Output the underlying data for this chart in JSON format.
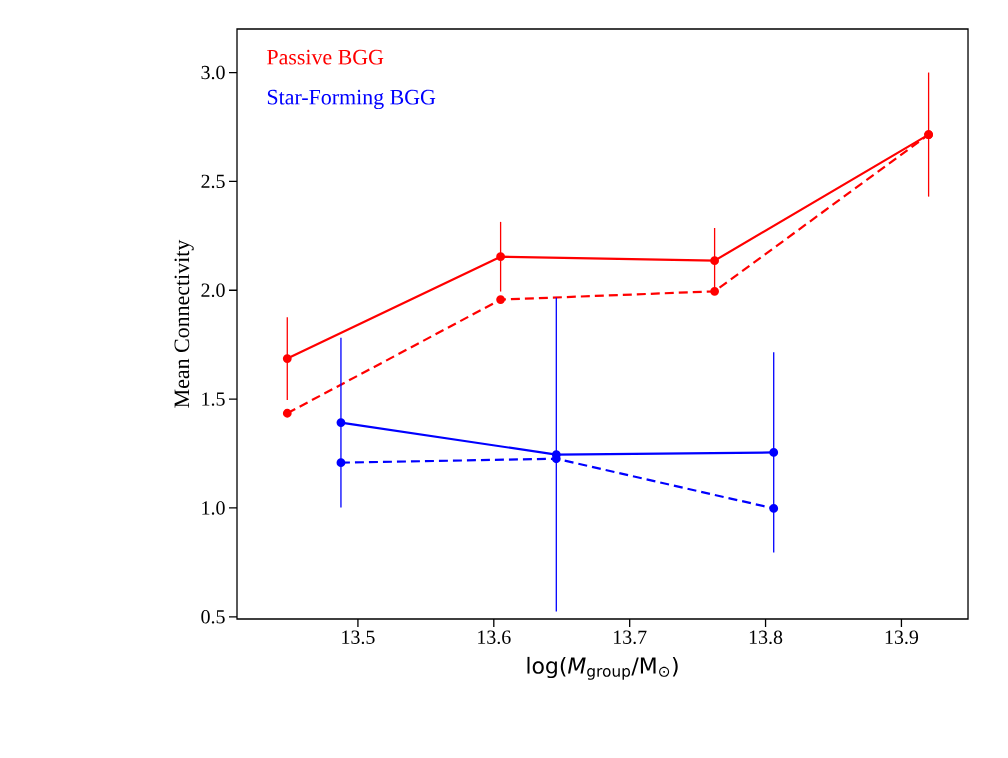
{
  "chart_data": {
    "type": "line",
    "xlabel": "log(*M*$_{group}$/M$_{⊙}$)",
    "ylabel": "Mean Connectivity",
    "xlim": [
      13.411,
      13.949
    ],
    "ylim": [
      0.49,
      3.2
    ],
    "xticks": [
      13.5,
      13.6,
      13.7,
      13.8,
      13.9
    ],
    "yticks": [
      0.5,
      {
        "value": 1,
        "label": "1.0"
      },
      1.5,
      {
        "value": 2,
        "label": "2.0"
      },
      2.5,
      {
        "value": 3,
        "label": "3.0"
      }
    ],
    "grid": false,
    "legend": "top left",
    "marker": "circle",
    "series": [
      {
        "name": "Passive BGG",
        "color": "#ff0000",
        "line_style": "solid",
        "x": [
          13.448,
          13.605,
          13.7625,
          13.92
        ],
        "values": [
          1.686,
          2.154,
          2.136,
          2.715
        ],
        "errors": [
          0.19,
          0.16,
          0.15,
          0.285
        ]
      },
      {
        "color": "#ff0000",
        "line_style": "dashed",
        "x": [
          13.448,
          13.605,
          13.7625,
          13.92
        ],
        "values": [
          1.435,
          1.957,
          1.995,
          2.715
        ]
      },
      {
        "name": "Star-Forming BGG",
        "color": "#0000ff",
        "line_style": "solid",
        "x": [
          13.4875,
          13.646,
          13.806
        ],
        "values": [
          1.392,
          1.245,
          1.255
        ],
        "errors": [
          0.39,
          0.72,
          0.46
        ]
      },
      {
        "color": "#0000ff",
        "line_style": "dashed",
        "x": [
          13.4875,
          13.646,
          13.806
        ],
        "values": [
          1.208,
          1.226,
          0.998
        ]
      }
    ]
  }
}
